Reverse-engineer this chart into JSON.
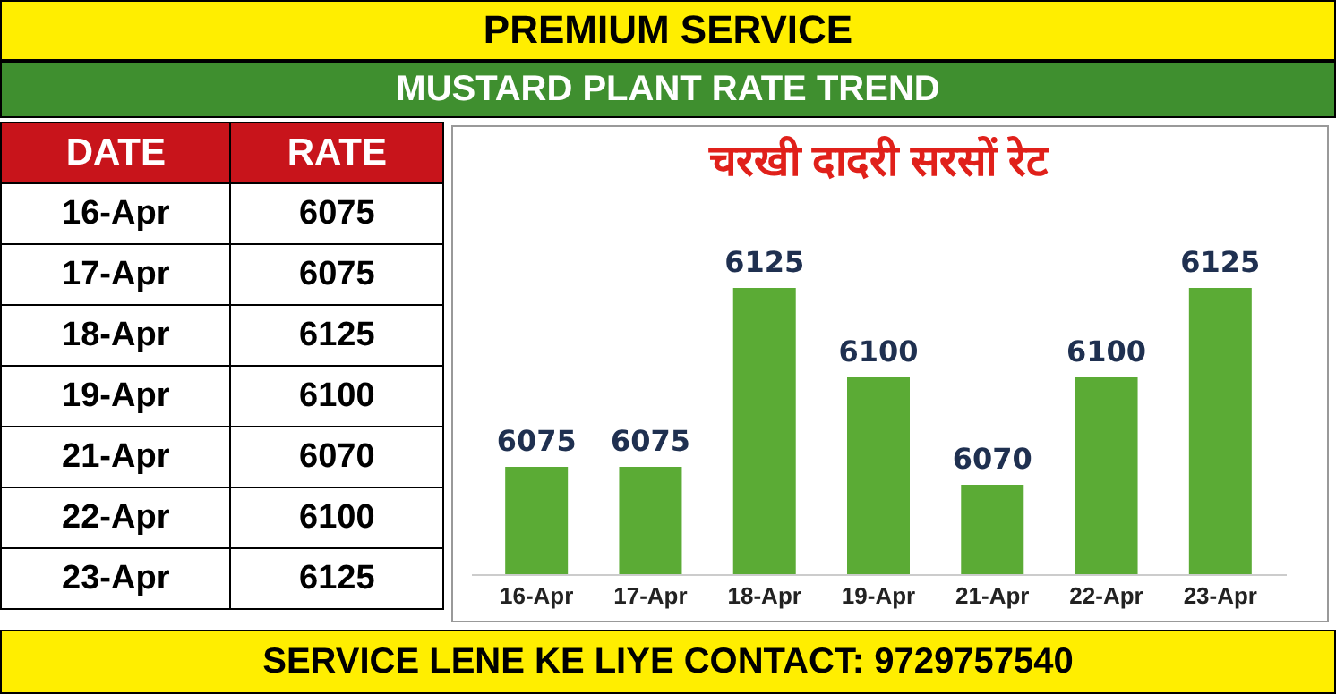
{
  "chart_data": [
    {
      "type": "other",
      "title": "MUSTARD PLANT RATE TREND",
      "annotations": [
        "PREMIUM SERVICE",
        "DATE",
        "RATE",
        "SERVICE LENE KE LIYE CONTACT: 9729757540"
      ],
      "categories": [
        "16-Apr",
        "17-Apr",
        "18-Apr",
        "19-Apr",
        "21-Apr",
        "22-Apr",
        "23-Apr"
      ],
      "values": [
        6075,
        6075,
        6125,
        6100,
        6070,
        6100,
        6125
      ],
      "data_labels": true
    },
    {
      "type": "bar",
      "title": "चरखी दादरी सरसों रेट",
      "categories": [
        "16-Apr",
        "17-Apr",
        "18-Apr",
        "19-Apr",
        "21-Apr",
        "22-Apr",
        "23-Apr"
      ],
      "values": [
        6075,
        6075,
        6125,
        6100,
        6070,
        6100,
        6125
      ],
      "color": "#5bab35",
      "ylim": [
        6045,
        6125
      ],
      "data_labels": true
    }
  ]
}
